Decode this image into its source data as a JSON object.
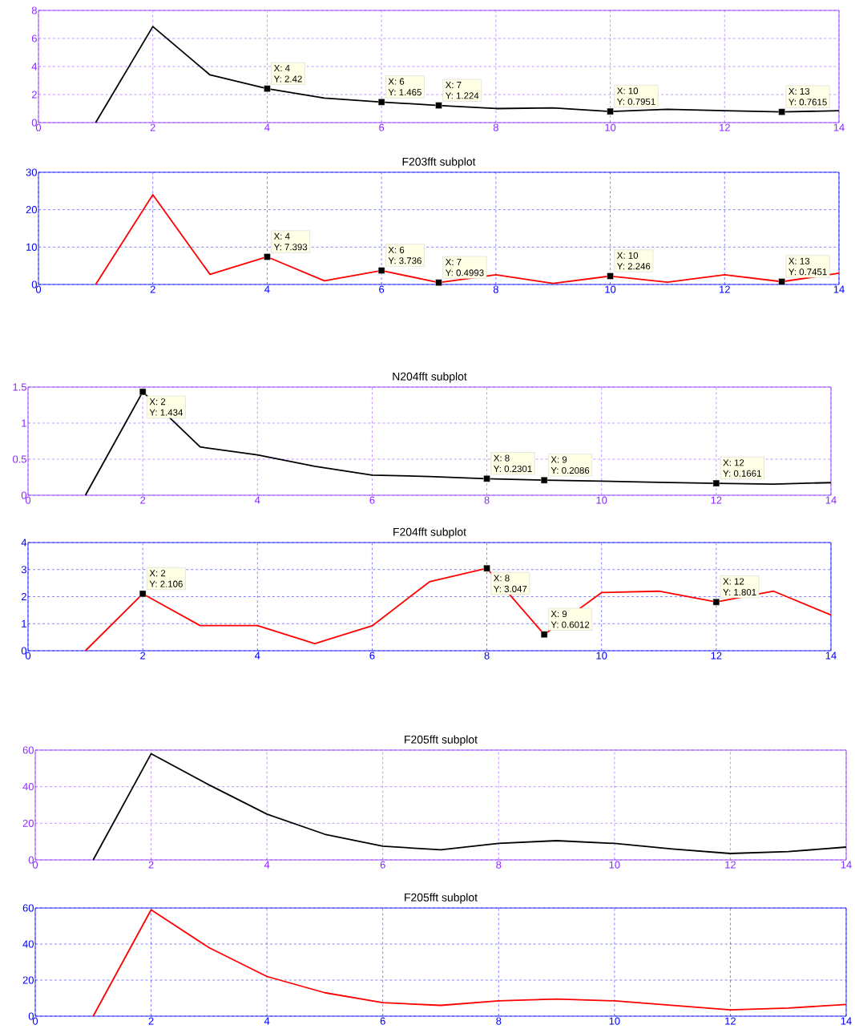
{
  "chart_data": [
    {
      "type": "line",
      "x": [
        1,
        2,
        3,
        4,
        5,
        6,
        7,
        8,
        9,
        10,
        11,
        12,
        13,
        14
      ],
      "series": [
        {
          "color": "#000000",
          "values": [
            0,
            6.85,
            3.4,
            2.42,
            1.75,
            1.465,
            1.224,
            1.0,
            1.05,
            0.7951,
            0.95,
            0.85,
            0.7615,
            0.85
          ]
        }
      ],
      "xlim": [
        0,
        14
      ],
      "ylim": [
        0,
        8
      ],
      "xticks": [
        0,
        2,
        4,
        6,
        8,
        10,
        12,
        14
      ],
      "yticks": [
        0,
        2,
        4,
        6,
        8
      ],
      "grid": true,
      "annotations": [
        {
          "text": "X: 4",
          "x": 4,
          "y": 2.42
        },
        {
          "text": "Y: 2.42",
          "x": 4,
          "y": 2.42
        },
        {
          "text": "X: 6",
          "x": 6,
          "y": 1.465
        },
        {
          "text": "Y: 1.465",
          "x": 6,
          "y": 1.465
        },
        {
          "text": "X: 7",
          "x": 7,
          "y": 1.224
        },
        {
          "text": "Y: 1.224",
          "x": 7,
          "y": 1.224
        },
        {
          "text": "X: 10",
          "x": 10,
          "y": 0.7951
        },
        {
          "text": "Y: 0.7951",
          "x": 10,
          "y": 0.7951
        },
        {
          "text": "X: 13",
          "x": 13,
          "y": 0.7615
        },
        {
          "text": "Y: 0.7615",
          "x": 13,
          "y": 0.7615
        }
      ]
    },
    {
      "type": "line",
      "title": "F203fft subplot",
      "x": [
        1,
        2,
        3,
        4,
        5,
        6,
        7,
        8,
        9,
        10,
        11,
        12,
        13,
        14
      ],
      "series": [
        {
          "color": "#ff0000",
          "values": [
            0,
            24,
            2.7,
            7.393,
            1.0,
            3.736,
            0.4993,
            2.6,
            0.3,
            2.246,
            0.6,
            2.6,
            0.7451,
            3.0
          ]
        }
      ],
      "xlim": [
        0,
        14
      ],
      "ylim": [
        0,
        30
      ],
      "xticks": [
        0,
        2,
        4,
        6,
        8,
        10,
        12,
        14
      ],
      "yticks": [
        0,
        10,
        20,
        30
      ],
      "grid": true,
      "annotations": [
        {
          "text": "X: 4",
          "x": 4,
          "y": 7.393
        },
        {
          "text": "Y: 7.393",
          "x": 4,
          "y": 7.393
        },
        {
          "text": "X: 6",
          "x": 6,
          "y": 3.736
        },
        {
          "text": "Y: 3.736",
          "x": 6,
          "y": 3.736
        },
        {
          "text": "X: 7",
          "x": 7,
          "y": 0.4993
        },
        {
          "text": "Y: 0.4993",
          "x": 7,
          "y": 0.4993
        },
        {
          "text": "X: 10",
          "x": 10,
          "y": 2.246
        },
        {
          "text": "Y: 2.246",
          "x": 10,
          "y": 2.246
        },
        {
          "text": "X: 13",
          "x": 13,
          "y": 0.7451
        },
        {
          "text": "Y: 0.7451",
          "x": 13,
          "y": 0.7451
        }
      ]
    },
    {
      "type": "line",
      "title": "N204fft subplot",
      "x": [
        1,
        2,
        3,
        4,
        5,
        6,
        7,
        8,
        9,
        10,
        11,
        12,
        13,
        14
      ],
      "series": [
        {
          "color": "#000000",
          "values": [
            0,
            1.434,
            0.67,
            0.56,
            0.4,
            0.28,
            0.26,
            0.2301,
            0.2086,
            0.195,
            0.18,
            0.1661,
            0.155,
            0.175
          ]
        }
      ],
      "xlim": [
        0,
        14
      ],
      "ylim": [
        0,
        1.5
      ],
      "xticks": [
        0,
        2,
        4,
        6,
        8,
        10,
        12,
        14
      ],
      "yticks": [
        0,
        0.5,
        1,
        1.5
      ],
      "grid": true,
      "annotations": [
        {
          "text": "X: 2",
          "x": 2,
          "y": 1.434
        },
        {
          "text": "Y: 1.434",
          "x": 2,
          "y": 1.434
        },
        {
          "text": "X: 8",
          "x": 8,
          "y": 0.2301
        },
        {
          "text": "Y: 0.2301",
          "x": 8,
          "y": 0.2301
        },
        {
          "text": "X: 9",
          "x": 9,
          "y": 0.2086
        },
        {
          "text": "Y: 0.2086",
          "x": 9,
          "y": 0.2086
        },
        {
          "text": "X: 12",
          "x": 12,
          "y": 0.1661
        },
        {
          "text": "Y: 0.1661",
          "x": 12,
          "y": 0.1661
        }
      ]
    },
    {
      "type": "line",
      "title": "F204fft subplot",
      "x": [
        1,
        2,
        3,
        4,
        5,
        6,
        7,
        8,
        9,
        10,
        11,
        12,
        13,
        14
      ],
      "series": [
        {
          "color": "#ff0000",
          "values": [
            0,
            2.106,
            0.93,
            0.93,
            0.26,
            0.92,
            2.55,
            3.047,
            0.6012,
            2.15,
            2.2,
            1.801,
            2.2,
            1.32
          ]
        }
      ],
      "xlim": [
        0,
        14
      ],
      "ylim": [
        0,
        4
      ],
      "xticks": [
        0,
        2,
        4,
        6,
        8,
        10,
        12,
        14
      ],
      "yticks": [
        0,
        1,
        2,
        3,
        4
      ],
      "grid": true,
      "annotations": [
        {
          "text": "X: 2",
          "x": 2,
          "y": 2.106
        },
        {
          "text": "Y: 2.106",
          "x": 2,
          "y": 2.106
        },
        {
          "text": "X: 8",
          "x": 8,
          "y": 3.047
        },
        {
          "text": "Y: 3.047",
          "x": 8,
          "y": 3.047
        },
        {
          "text": "X: 9",
          "x": 9,
          "y": 0.6012
        },
        {
          "text": "Y: 0.6012",
          "x": 9,
          "y": 0.6012
        },
        {
          "text": "X: 12",
          "x": 12,
          "y": 1.801
        },
        {
          "text": "Y: 1.801",
          "x": 12,
          "y": 1.801
        }
      ]
    },
    {
      "type": "line",
      "title": "F205fft subplot",
      "x": [
        1,
        2,
        3,
        4,
        5,
        6,
        7,
        8,
        9,
        10,
        11,
        12,
        13,
        14
      ],
      "series": [
        {
          "color": "#000000",
          "values": [
            0,
            58,
            41,
            25,
            14,
            7.5,
            5.5,
            9,
            10.5,
            9,
            6,
            3.5,
            4.5,
            7
          ]
        }
      ],
      "xlim": [
        0,
        14
      ],
      "ylim": [
        0,
        60
      ],
      "xticks": [
        0,
        2,
        4,
        6,
        8,
        10,
        12,
        14
      ],
      "yticks": [
        0,
        20,
        40,
        60
      ],
      "grid": true
    },
    {
      "type": "line",
      "title": "F205fft subplot",
      "x": [
        1,
        2,
        3,
        4,
        5,
        6,
        7,
        8,
        9,
        10,
        11,
        12,
        13,
        14
      ],
      "series": [
        {
          "color": "#ff0000",
          "values": [
            0,
            59,
            38,
            22,
            13,
            7.5,
            6,
            8.5,
            9.5,
            8.5,
            6,
            3.5,
            4.5,
            6.5
          ]
        }
      ],
      "xlim": [
        0,
        14
      ],
      "ylim": [
        0,
        60
      ],
      "xticks": [
        0,
        2,
        4,
        6,
        8,
        10,
        12,
        14
      ],
      "yticks": [
        0,
        20,
        40,
        60
      ],
      "grid": true
    }
  ]
}
